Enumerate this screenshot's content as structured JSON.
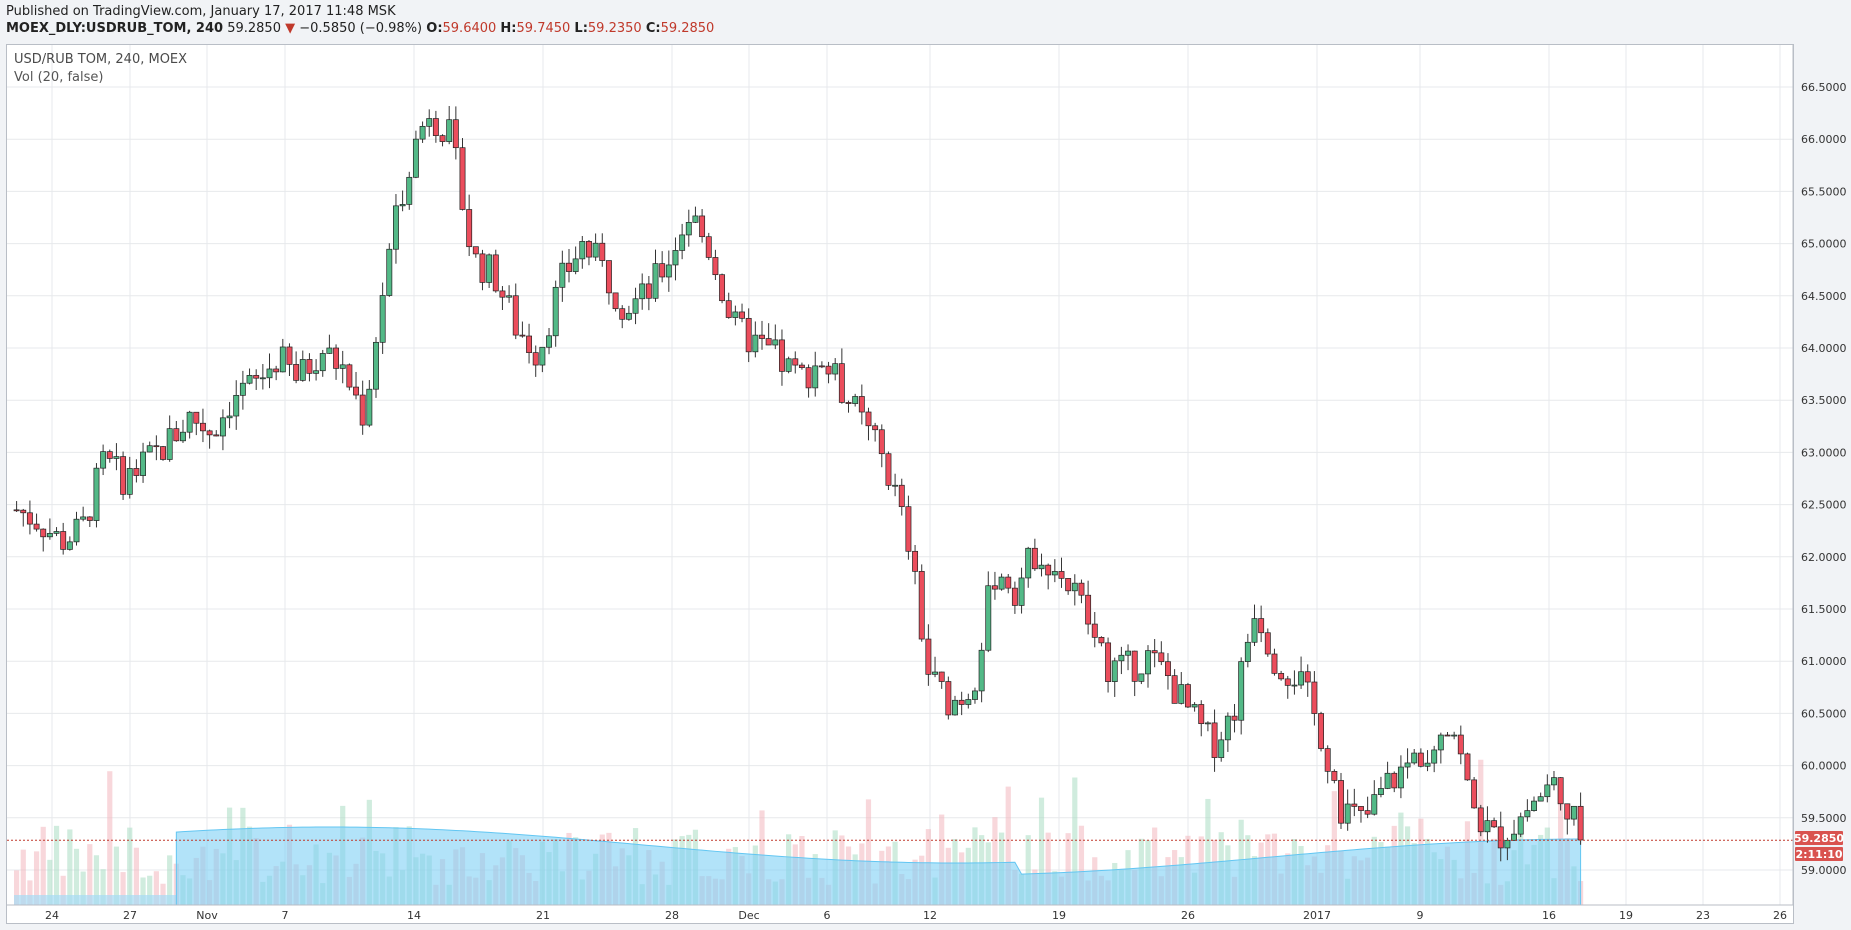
{
  "header": {
    "published": "Published on TradingView.com, January 17, 2017 11:48 MSK",
    "symbol": "MOEX_DLY:USDRUB_TOM, 240",
    "last": "59.2850",
    "arrow": "▼",
    "change": "−0.5850 (−0.98%)",
    "o_label": "O:",
    "o_value": "59.6400",
    "h_label": "H:",
    "h_value": "59.7450",
    "l_label": "L:",
    "l_value": "59.2350",
    "c_label": "C:",
    "c_value": "59.2850"
  },
  "legend": {
    "title": "USD/RUB TOM, 240, MOEX",
    "volume": "Vol (20, false)"
  },
  "price_label": "59.2850",
  "countdown_label": "2:11:10",
  "colors": {
    "up": "#53b987",
    "down": "#eb4d5c",
    "candle_border": "#222",
    "vol_up": "#a9dcc3",
    "vol_down": "#f2b7be",
    "vol_ma": "#62c6f2",
    "price_line": "#c0392b"
  },
  "chart_data": {
    "type": "candlestick",
    "ylim": [
      58.65,
      66.75
    ],
    "y_ticks": [
      "66.5000",
      "66.0000",
      "65.5000",
      "65.0000",
      "64.5000",
      "64.0000",
      "63.5000",
      "63.0000",
      "62.5000",
      "62.0000",
      "61.5000",
      "61.0000",
      "60.5000",
      "60.0000",
      "59.5000",
      "59.0000"
    ],
    "x_ticks": [
      "24",
      "27",
      "Nov",
      "7",
      "14",
      "21",
      "28",
      "Dec",
      "6",
      "12",
      "19",
      "26",
      "2017",
      "9",
      "16",
      "19",
      "23",
      "26"
    ],
    "close_series": [
      62.45,
      62.35,
      62.15,
      62.25,
      62.9,
      62.75,
      62.9,
      63.1,
      63.35,
      63.2,
      63.55,
      63.65,
      63.9,
      63.7,
      64.0,
      63.8,
      63.35,
      64.75,
      65.75,
      66.3,
      66.0,
      64.85,
      64.7,
      64.2,
      63.95,
      64.6,
      65.0,
      64.75,
      64.4,
      64.5,
      64.85,
      65.3,
      64.9,
      64.2,
      64.05,
      63.9,
      63.7,
      63.9,
      63.6,
      63.25,
      62.9,
      62.2,
      60.85,
      60.6,
      60.75,
      61.85,
      61.7,
      62.1,
      61.85,
      61.55,
      61.0,
      60.9,
      61.05,
      60.85,
      60.5,
      60.2,
      60.5,
      61.55,
      61.0,
      60.85,
      60.35,
      59.6,
      59.45,
      59.8,
      60.0,
      60.2,
      60.5,
      59.6,
      59.3,
      59.45,
      59.7,
      59.85,
      59.285
    ],
    "volume_peak_label": ""
  }
}
